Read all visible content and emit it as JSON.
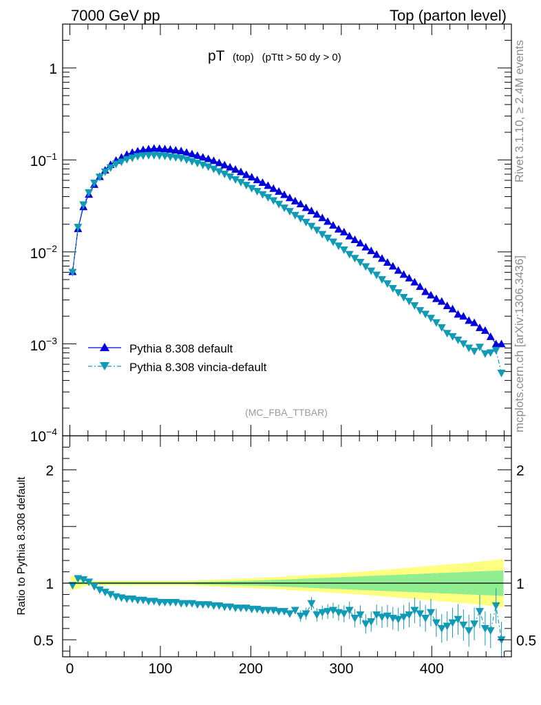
{
  "header": {
    "left": "7000 GeV pp",
    "right": "Top (parton level)"
  },
  "side_labels": {
    "rivet": "Rivet 3.1.10, ≥ 2.4M events",
    "mcplots": "mcplots.cern.ch [arXiv:1306.3436]"
  },
  "plot_title": {
    "main": "pT",
    "sub1": "(top)",
    "sub2": "(pTtt > 50 dy > 0)"
  },
  "analysis_tag": "(MC_FBA_TTBAR)",
  "legend": {
    "default_label": "Pythia 8.308 default",
    "vincia_label": "Pythia 8.308 vincia-default"
  },
  "ratio_ylabel": "Ratio to Pythia 8.308 default",
  "chart_data": [
    {
      "type": "line",
      "scale": "log-y",
      "xlim": [
        -8,
        488
      ],
      "ylim": [
        0.0001,
        3
      ],
      "ytick_labels": [
        "10^-4",
        "10^-3",
        "10^-2",
        "10^-1",
        "1"
      ],
      "colors": {
        "default": "#0000dd",
        "vincia": "#0f9ab5"
      },
      "x": [
        3,
        9,
        15,
        21,
        27,
        33,
        39,
        45,
        51,
        57,
        63,
        69,
        75,
        81,
        87,
        93,
        99,
        105,
        111,
        117,
        123,
        129,
        135,
        141,
        147,
        153,
        159,
        165,
        171,
        177,
        183,
        189,
        195,
        201,
        207,
        213,
        219,
        225,
        231,
        237,
        243,
        249,
        255,
        261,
        267,
        273,
        279,
        285,
        291,
        297,
        303,
        309,
        315,
        321,
        327,
        333,
        339,
        345,
        351,
        357,
        363,
        369,
        375,
        381,
        387,
        393,
        399,
        405,
        411,
        417,
        423,
        429,
        435,
        441,
        447,
        453,
        459,
        465,
        471,
        477
      ],
      "series": [
        {
          "name": "Pythia 8.308 default",
          "marker": "triangle-up",
          "values": [
            0.0061,
            0.0179,
            0.031,
            0.0423,
            0.0542,
            0.0659,
            0.0775,
            0.089,
            0.099,
            0.1069,
            0.115,
            0.121,
            0.125,
            0.1293,
            0.1315,
            0.1339,
            0.1332,
            0.1318,
            0.1304,
            0.128,
            0.1256,
            0.121,
            0.1163,
            0.1118,
            0.1073,
            0.1031,
            0.0984,
            0.0932,
            0.0884,
            0.0837,
            0.0792,
            0.0744,
            0.0693,
            0.0652,
            0.0608,
            0.0569,
            0.0528,
            0.0489,
            0.0456,
            0.042,
            0.0388,
            0.0358,
            0.0333,
            0.0303,
            0.028,
            0.0257,
            0.0235,
            0.0215,
            0.0195,
            0.0177,
            0.0165,
            0.0149,
            0.0136,
            0.0125,
            0.0113,
            0.0103,
            0.0094,
            0.0085,
            0.0077,
            0.007,
            0.0063,
            0.0057,
            0.0052,
            0.0047,
            0.0042,
            0.0037,
            0.0034,
            0.0031,
            0.0029,
            0.0026,
            0.0024,
            0.0021,
            0.002,
            0.0018,
            0.0017,
            0.0015,
            0.0014,
            0.0012,
            0.001,
            0.001
          ]
        },
        {
          "name": "Pythia 8.308 vincia-default",
          "marker": "triangle-down",
          "values": [
            0.006,
            0.0185,
            0.0325,
            0.044,
            0.056,
            0.065,
            0.074,
            0.082,
            0.09,
            0.095,
            0.101,
            0.105,
            0.109,
            0.111,
            0.112,
            0.112,
            0.111,
            0.11,
            0.108,
            0.106,
            0.104,
            0.1,
            0.096,
            0.092,
            0.088,
            0.084,
            0.0795,
            0.0745,
            0.07,
            0.0655,
            0.061,
            0.057,
            0.053,
            0.049,
            0.0455,
            0.042,
            0.039,
            0.036,
            0.033,
            0.03,
            0.0275,
            0.025,
            0.023,
            0.021,
            0.019,
            0.0172,
            0.0155,
            0.0141,
            0.0128,
            0.0116,
            0.0105,
            0.0094,
            0.0085,
            0.0077,
            0.0069,
            0.0062,
            0.0056,
            0.005,
            0.0045,
            0.004,
            0.0036,
            0.0032,
            0.0029,
            0.0026,
            0.0023,
            0.0021,
            0.0019,
            0.0017,
            0.0015,
            0.0013,
            0.0012,
            0.0011,
            0.001,
            0.0009,
            0.00083,
            0.00092,
            0.00078,
            0.0008,
            0.00085,
            0.00048
          ]
        }
      ]
    },
    {
      "type": "line",
      "xlim": [
        -8,
        488
      ],
      "ylim": [
        0.35,
        2.3
      ],
      "xticks": [
        0,
        100,
        200,
        300,
        400
      ],
      "yticks": [
        0.5,
        1,
        2
      ],
      "ylabel": "Ratio to Pythia 8.308 default",
      "x": [
        3,
        9,
        15,
        21,
        27,
        33,
        39,
        45,
        51,
        57,
        63,
        69,
        75,
        81,
        87,
        93,
        99,
        105,
        111,
        117,
        123,
        129,
        135,
        141,
        147,
        153,
        159,
        165,
        171,
        177,
        183,
        189,
        195,
        201,
        207,
        213,
        219,
        225,
        231,
        237,
        243,
        249,
        255,
        261,
        267,
        273,
        279,
        285,
        291,
        297,
        303,
        309,
        315,
        321,
        327,
        333,
        339,
        345,
        351,
        357,
        363,
        369,
        375,
        381,
        387,
        393,
        399,
        405,
        411,
        417,
        423,
        429,
        435,
        441,
        447,
        453,
        459,
        465,
        471,
        477
      ],
      "series": [
        {
          "name": "Pythia 8.308 vincia-default",
          "values": [
            0.98,
            1.04,
            1.03,
            1.01,
            0.97,
            0.94,
            0.92,
            0.9,
            0.88,
            0.87,
            0.86,
            0.86,
            0.85,
            0.85,
            0.84,
            0.84,
            0.83,
            0.83,
            0.83,
            0.83,
            0.82,
            0.82,
            0.82,
            0.81,
            0.81,
            0.81,
            0.8,
            0.8,
            0.79,
            0.79,
            0.78,
            0.78,
            0.78,
            0.77,
            0.77,
            0.76,
            0.76,
            0.76,
            0.75,
            0.75,
            0.73,
            0.76,
            0.71,
            0.73,
            0.82,
            0.72,
            0.74,
            0.75,
            0.76,
            0.74,
            0.73,
            0.76,
            0.69,
            0.72,
            0.64,
            0.66,
            0.72,
            0.7,
            0.71,
            0.69,
            0.68,
            0.7,
            0.72,
            0.76,
            0.73,
            0.69,
            0.74,
            0.65,
            0.6,
            0.62,
            0.65,
            0.68,
            0.63,
            0.58,
            0.64,
            0.75,
            0.6,
            0.58,
            0.8,
            0.5
          ]
        }
      ],
      "band_halfwidth_inner": [
        0.01,
        0.01,
        0.01,
        0.01,
        0.01,
        0.01,
        0.01,
        0.01,
        0.01,
        0.01,
        0.01,
        0.01,
        0.01,
        0.01,
        0.01,
        0.01,
        0.01,
        0.01,
        0.01,
        0.01,
        0.01,
        0.01,
        0.01,
        0.012,
        0.013,
        0.014,
        0.015,
        0.016,
        0.017,
        0.018,
        0.019,
        0.02,
        0.021,
        0.022,
        0.023,
        0.024,
        0.026,
        0.028,
        0.03,
        0.032,
        0.034,
        0.036,
        0.038,
        0.04,
        0.042,
        0.044,
        0.046,
        0.048,
        0.05,
        0.052,
        0.054,
        0.056,
        0.058,
        0.06,
        0.062,
        0.064,
        0.066,
        0.068,
        0.07,
        0.072,
        0.074,
        0.076,
        0.078,
        0.08,
        0.082,
        0.084,
        0.086,
        0.088,
        0.09,
        0.092,
        0.094,
        0.096,
        0.098,
        0.1,
        0.102,
        0.104,
        0.106,
        0.108,
        0.11,
        0.112
      ],
      "band_halfwidth_outer": [
        0.06,
        0.05,
        0.03,
        0.025,
        0.02,
        0.02,
        0.02,
        0.02,
        0.02,
        0.02,
        0.02,
        0.02,
        0.02,
        0.02,
        0.02,
        0.02,
        0.02,
        0.02,
        0.02,
        0.02,
        0.02,
        0.02,
        0.022,
        0.024,
        0.026,
        0.028,
        0.03,
        0.032,
        0.034,
        0.036,
        0.038,
        0.04,
        0.042,
        0.044,
        0.046,
        0.048,
        0.05,
        0.052,
        0.055,
        0.058,
        0.061,
        0.064,
        0.067,
        0.07,
        0.073,
        0.076,
        0.079,
        0.082,
        0.085,
        0.088,
        0.091,
        0.094,
        0.097,
        0.1,
        0.104,
        0.108,
        0.112,
        0.116,
        0.12,
        0.124,
        0.128,
        0.132,
        0.136,
        0.14,
        0.144,
        0.148,
        0.152,
        0.156,
        0.16,
        0.164,
        0.168,
        0.172,
        0.176,
        0.18,
        0.185,
        0.19,
        0.195,
        0.2,
        0.205,
        0.21
      ],
      "band_colors": {
        "inner": "#90ee90",
        "outer": "#ffff80"
      }
    }
  ]
}
